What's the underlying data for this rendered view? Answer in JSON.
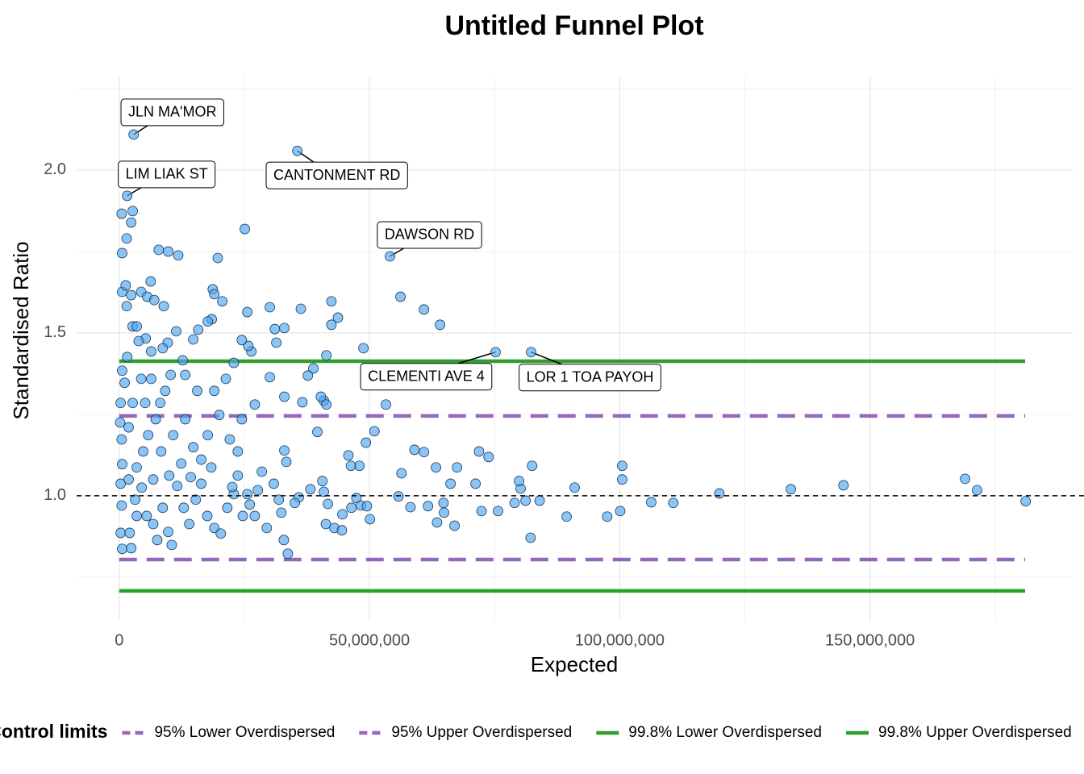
{
  "chart_data": {
    "type": "scatter",
    "title": "Untitled Funnel Plot",
    "x_label": "Expected",
    "y_label": "Standardised Ratio",
    "xlim": [
      -8500000,
      190500000
    ],
    "ylim": [
      0.616,
      2.287
    ],
    "xticks": [
      0,
      {
        "value": 50000000,
        "label": "50,000,000"
      },
      {
        "value": 100000000,
        "label": "100,000,000"
      },
      {
        "value": 150000000,
        "label": "150,000,000"
      }
    ],
    "yticks": [
      {
        "value": 1,
        "label": "1.0"
      },
      {
        "value": 1.5,
        "label": "1.5"
      },
      {
        "value": 2,
        "label": "2.0"
      }
    ],
    "xminorticks": [
      25000000,
      75000000,
      125000000,
      175000000
    ],
    "yminorticks": [
      0.75,
      1.25,
      1.75,
      2.25
    ],
    "grid": true,
    "reference_line": 1,
    "point_color": "#4da6f5",
    "points": {
      "x": [
        181100000,
        171400000,
        169000000,
        144700000,
        134200000,
        119900000,
        110700000,
        106300000,
        100500000,
        100500000,
        100100000,
        97500000,
        91000000,
        89400000,
        84000000,
        82500000,
        82200000,
        81200000,
        80200000,
        79900000,
        79000000,
        75700000,
        72400000,
        73800000,
        71900000,
        71200000,
        67500000,
        67000000,
        66200000,
        64800000,
        64900000,
        63500000,
        63300000,
        64100000,
        60900000,
        56200000,
        56400000,
        55800000,
        58200000,
        59000000,
        60900000,
        61700000,
        53300000,
        51000000,
        49300000,
        48800000,
        48000000,
        46300000,
        45800000,
        43700000,
        42400000,
        42400000,
        41400000,
        40900000,
        40300000,
        41400000,
        38800000,
        37700000,
        36600000,
        39600000,
        36300000,
        33000000,
        31100000,
        30100000,
        31400000,
        33000000,
        30100000,
        33400000,
        33000000,
        25100000,
        25600000,
        27100000,
        26400000,
        25800000,
        24500000,
        32900000,
        33700000,
        40600000,
        40900000,
        41300000,
        43000000,
        44500000,
        44600000,
        46400000,
        47400000,
        48300000,
        49500000,
        50100000,
        41700000,
        38200000,
        35900000,
        35100000,
        31900000,
        32400000,
        30900000,
        28500000,
        27700000,
        29500000,
        27100000,
        26100000,
        24700000,
        23700000,
        22900000,
        25600000,
        600000,
        500000,
        1500000,
        2400000,
        2700000,
        600000,
        1500000,
        1300000,
        2400000,
        2700000,
        3500000,
        4400000,
        5600000,
        6300000,
        7000000,
        7900000,
        8900000,
        9800000,
        11800000,
        19700000,
        20600000,
        18700000,
        19000000,
        18500000,
        17700000,
        15800000,
        11400000,
        14800000,
        12700000,
        9700000,
        8700000,
        6400000,
        5300000,
        3900000,
        1600000,
        600000,
        1100000,
        300000,
        200000,
        500000,
        600000,
        300000,
        500000,
        300000,
        600000,
        2100000,
        2400000,
        3200000,
        4500000,
        5500000,
        6800000,
        7600000,
        8700000,
        9800000,
        10500000,
        11600000,
        12900000,
        14000000,
        15300000,
        16400000,
        17600000,
        19000000,
        20300000,
        21600000,
        22600000,
        3500000,
        4800000,
        5800000,
        7300000,
        8200000,
        9200000,
        10300000,
        13200000,
        15600000,
        19000000,
        21300000,
        22900000,
        20000000,
        17700000,
        14800000,
        12400000,
        10000000,
        6800000,
        4400000,
        2700000,
        1900000,
        5200000,
        8400000,
        10800000,
        13200000,
        16400000,
        18400000,
        22100000,
        23700000,
        24500000,
        6400000,
        1900000,
        3500000,
        14300000
      ],
      "y": [
        0.983,
        1.017,
        1.052,
        1.032,
        1.02,
        1.007,
        0.978,
        0.98,
        1.092,
        1.05,
        0.953,
        0.936,
        1.025,
        0.936,
        0.985,
        1.092,
        0.871,
        0.985,
        1.022,
        1.045,
        0.978,
        0.953,
        0.953,
        1.119,
        1.136,
        1.037,
        1.087,
        0.908,
        1.037,
        0.978,
        0.948,
        0.918,
        1.087,
        1.525,
        1.572,
        1.611,
        1.069,
        0.998,
        0.965,
        1.141,
        1.134,
        0.968,
        1.28,
        1.198,
        1.163,
        1.453,
        1.092,
        1.092,
        1.124,
        1.547,
        1.525,
        1.597,
        1.431,
        1.292,
        1.304,
        1.28,
        1.391,
        1.369,
        1.287,
        1.196,
        1.574,
        1.515,
        1.512,
        1.579,
        1.47,
        1.304,
        1.364,
        1.104,
        1.139,
        1.819,
        1.564,
        1.28,
        1.443,
        1.46,
        1.478,
        0.864,
        0.822,
        1.045,
        1.012,
        0.913,
        0.901,
        0.894,
        0.943,
        0.963,
        0.993,
        0.97,
        0.968,
        0.928,
        0.975,
        1.02,
        0.995,
        0.978,
        0.988,
        0.948,
        1.037,
        1.074,
        1.017,
        0.901,
        0.938,
        0.973,
        0.938,
        1.062,
        1.005,
        1.005,
        1.745,
        1.866,
        1.79,
        1.839,
        1.874,
        1.626,
        1.582,
        1.646,
        1.616,
        1.52,
        1.52,
        1.626,
        1.611,
        1.658,
        1.601,
        1.755,
        1.582,
        1.75,
        1.738,
        1.73,
        1.597,
        1.634,
        1.619,
        1.542,
        1.535,
        1.51,
        1.505,
        1.48,
        1.416,
        1.47,
        1.453,
        1.443,
        1.483,
        1.475,
        1.426,
        1.384,
        1.347,
        1.285,
        1.225,
        1.173,
        1.097,
        1.037,
        0.97,
        0.886,
        0.837,
        0.886,
        0.839,
        0.988,
        1.025,
        0.938,
        0.913,
        0.864,
        0.963,
        0.889,
        0.849,
        1.03,
        0.963,
        0.913,
        0.988,
        1.037,
        0.938,
        0.901,
        0.884,
        0.963,
        1.027,
        1.087,
        1.136,
        1.186,
        1.235,
        1.285,
        1.322,
        1.371,
        1.371,
        1.322,
        1.322,
        1.359,
        1.408,
        1.248,
        1.186,
        1.149,
        1.099,
        1.062,
        1.05,
        1.359,
        1.285,
        1.21,
        1.285,
        1.136,
        1.186,
        1.235,
        1.111,
        1.087,
        1.173,
        1.136,
        1.235,
        1.359,
        1.05,
        0.938,
        1.057
      ]
    },
    "annotations": [
      {
        "text": "JLN MA'MOR",
        "x": 2900000,
        "y": 2.109
      },
      {
        "text": "LIM LIAK ST",
        "x": 1600000,
        "y": 1.921
      },
      {
        "text": "CANTONMENT RD",
        "x": 35600000,
        "y": 2.059
      },
      {
        "text": "DAWSON RD",
        "x": 54100000,
        "y": 1.735
      },
      {
        "text": "CLEMENTI AVE 4",
        "x": 75200000,
        "y": 1.441
      },
      {
        "text": "LOR 1 TOA PAYOH",
        "x": 82300000,
        "y": 1.441
      }
    ],
    "legend_title": "Control limits",
    "legend": "bottom",
    "series": [
      {
        "name": "95% Lower Overdispersed",
        "color": "#9467bd",
        "dash": true,
        "x": [
          0,
          181000000
        ],
        "values": [
          0.804,
          0.804
        ]
      },
      {
        "name": "95% Upper Overdispersed",
        "color": "#9467bd",
        "dash": true,
        "x": [
          0,
          181000000
        ],
        "values": [
          1.245,
          1.245
        ]
      },
      {
        "name": "99.8% Lower Overdispersed",
        "color": "#2ca02c",
        "dash": false,
        "x": [
          0,
          181000000
        ],
        "values": [
          0.708,
          0.708
        ]
      },
      {
        "name": "99.8% Upper Overdispersed",
        "color": "#2ca02c",
        "dash": false,
        "x": [
          0,
          181000000
        ],
        "values": [
          1.413,
          1.413
        ]
      }
    ]
  }
}
